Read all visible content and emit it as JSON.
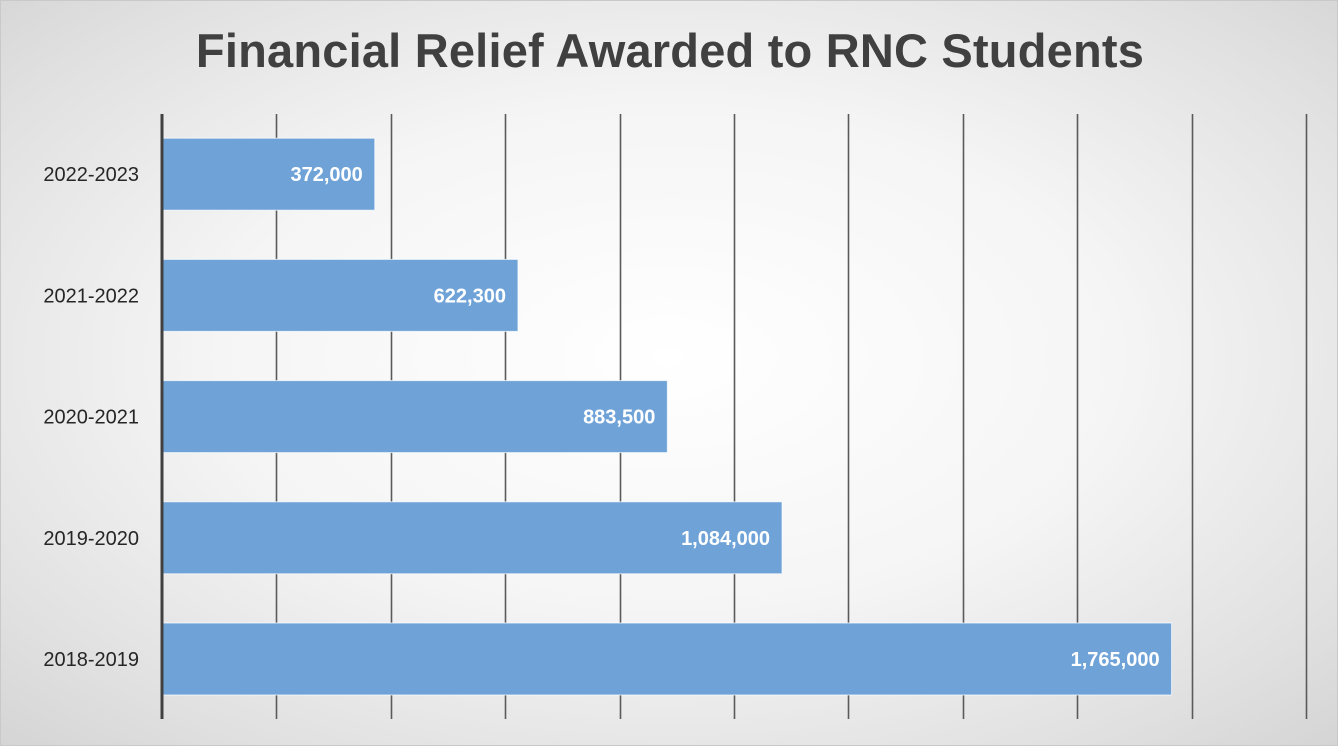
{
  "chart_data": {
    "type": "bar",
    "orientation": "horizontal",
    "title": "Financial Relief Awarded to RNC Students",
    "categories": [
      "2018-2019",
      "2019-2020",
      "2020-2021",
      "2021-2022",
      "2022-2023"
    ],
    "values": [
      1765000,
      1084000,
      883500,
      622300,
      372000
    ],
    "data_labels": [
      "1,765,000",
      "1,084,000",
      "883,500",
      "622,300",
      "372,000"
    ],
    "xlim": [
      0,
      2000000
    ],
    "x_gridline_step": 200000,
    "x_tick_labels_shown": false,
    "grid": "vertical",
    "legend": "none",
    "bar_color": "#6fa3d8",
    "data_label_color": "#ffffff",
    "axis_color": "#404040",
    "gridline_color": "#5a5a5a",
    "category_label_color": "#262626"
  }
}
